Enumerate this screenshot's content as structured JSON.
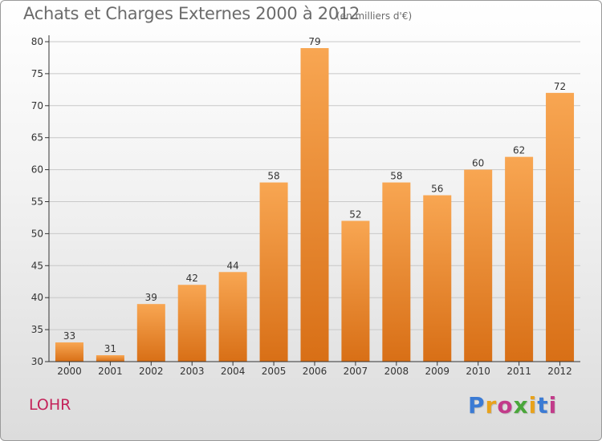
{
  "header": {
    "title": "Achats et Charges Externes 2000 à 2012",
    "subtitle": "(en milliers d'€)"
  },
  "footer": {
    "commune": "LOHR",
    "logo_letters": [
      {
        "char": "P",
        "color": "#3b7bd4"
      },
      {
        "char": "r",
        "color": "#e8a21c"
      },
      {
        "char": "o",
        "color": "#c23b8a"
      },
      {
        "char": "x",
        "color": "#4aa63a"
      },
      {
        "char": "i",
        "color": "#e8a21c"
      },
      {
        "char": "t",
        "color": "#3b7bd4"
      },
      {
        "char": "i",
        "color": "#c23b8a"
      }
    ]
  },
  "colors": {
    "bar_top": "#f8a652",
    "bar_bottom": "#d86f16",
    "axis": "#333333",
    "grid": "#c8c8c8",
    "title": "#6b6b6b",
    "commune": "#c4235a"
  },
  "chart_data": {
    "type": "bar",
    "title": "Achats et Charges Externes 2000 à 2012",
    "subtitle": "(en milliers d'€)",
    "xlabel": "",
    "ylabel": "",
    "categories": [
      "2000",
      "2001",
      "2002",
      "2003",
      "2004",
      "2005",
      "2006",
      "2007",
      "2008",
      "2009",
      "2010",
      "2011",
      "2012"
    ],
    "values": [
      33,
      31,
      39,
      42,
      44,
      58,
      79,
      52,
      58,
      56,
      60,
      62,
      72
    ],
    "ylim": [
      30,
      80
    ],
    "yticks": [
      30,
      35,
      40,
      45,
      50,
      55,
      60,
      65,
      70,
      75,
      80
    ],
    "grid": true,
    "legend": "none"
  }
}
